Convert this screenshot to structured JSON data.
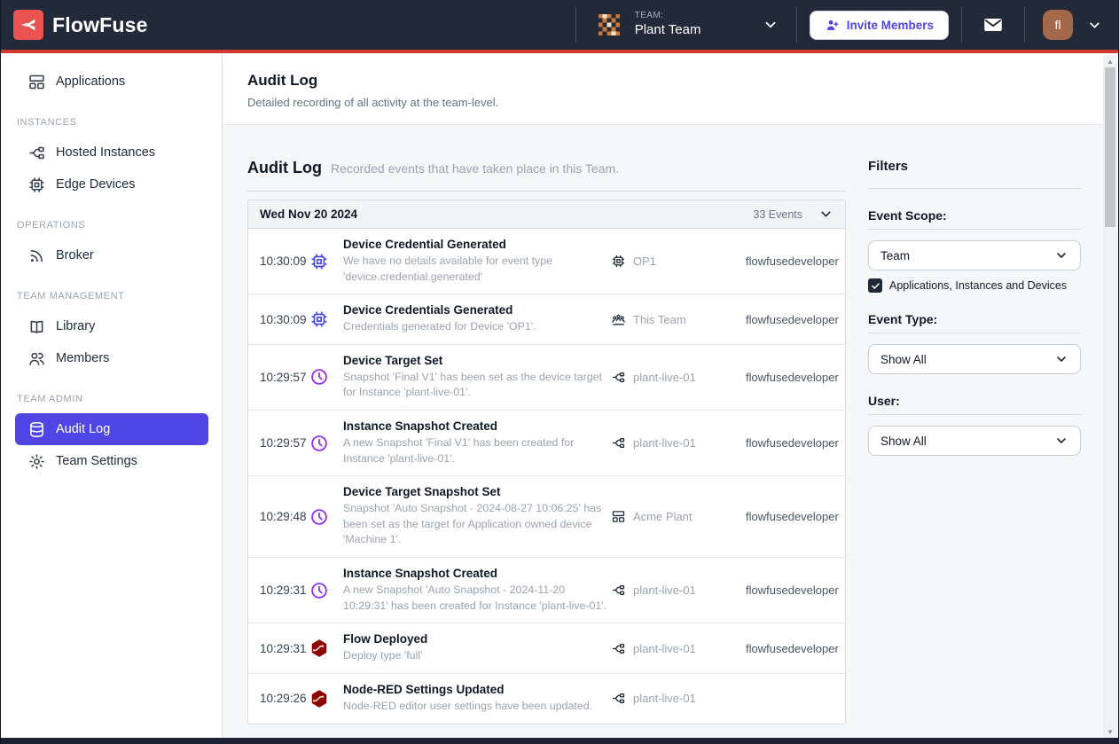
{
  "navbar": {
    "brand": "FlowFuse",
    "team_label": "TEAM:",
    "team_name": "Plant Team",
    "invite_button": "Invite Members",
    "user_initials": "fl"
  },
  "sidebar": {
    "sections": [
      {
        "label": "",
        "items": [
          {
            "icon": "applications",
            "label": "Applications",
            "active": false
          }
        ]
      },
      {
        "label": "INSTANCES",
        "items": [
          {
            "icon": "instances",
            "label": "Hosted Instances",
            "active": false
          },
          {
            "icon": "chip",
            "label": "Edge Devices",
            "active": false
          }
        ]
      },
      {
        "label": "OPERATIONS",
        "items": [
          {
            "icon": "broker",
            "label": "Broker",
            "active": false
          }
        ]
      },
      {
        "label": "TEAM MANAGEMENT",
        "items": [
          {
            "icon": "library",
            "label": "Library",
            "active": false
          },
          {
            "icon": "members",
            "label": "Members",
            "active": false
          }
        ]
      },
      {
        "label": "TEAM ADMIN",
        "items": [
          {
            "icon": "audit",
            "label": "Audit Log",
            "active": true
          },
          {
            "icon": "settings",
            "label": "Team Settings",
            "active": false
          }
        ]
      }
    ]
  },
  "page": {
    "title": "Audit Log",
    "subtitle": "Detailed recording of all activity at the team-level."
  },
  "section": {
    "title": "Audit Log",
    "subtitle": "Recorded events that have taken place in this Team."
  },
  "group": {
    "date": "Wed Nov 20 2024",
    "count": "33 Events"
  },
  "events": [
    {
      "time": "10:30:09",
      "icon": "chip",
      "icon_color": "device",
      "title": "Device Credential Generated",
      "description": "We have no details available for event type 'device.credential.generated'",
      "scope_icon": "chip",
      "scope": "OP1",
      "user": "flowfusedeveloper"
    },
    {
      "time": "10:30:09",
      "icon": "chip",
      "icon_color": "device",
      "title": "Device Credentials Generated",
      "description": "Credentials generated for Device 'OP1'.",
      "scope_icon": "team",
      "scope": "This Team",
      "user": "flowfusedeveloper"
    },
    {
      "time": "10:29:57",
      "icon": "clock",
      "icon_color": "clock",
      "title": "Device Target Set",
      "description": "Snapshot 'Final V1' has been set as the device target for Instance 'plant-live-01'.",
      "scope_icon": "instances",
      "scope": "plant-live-01",
      "user": "flowfusedeveloper"
    },
    {
      "time": "10:29:57",
      "icon": "clock",
      "icon_color": "clock",
      "title": "Instance Snapshot Created",
      "description": "A new Snapshot 'Final V1' has been created for Instance 'plant-live-01'.",
      "scope_icon": "instances",
      "scope": "plant-live-01",
      "user": "flowfusedeveloper"
    },
    {
      "time": "10:29:48",
      "icon": "clock",
      "icon_color": "clock",
      "title": "Device Target Snapshot Set",
      "description": "Snapshot 'Auto Snapshot - 2024-08-27 10:06:25' has been set as the target for Application owned device 'Machine 1'.",
      "scope_icon": "applications",
      "scope": "Acme Plant",
      "user": "flowfusedeveloper"
    },
    {
      "time": "10:29:31",
      "icon": "clock",
      "icon_color": "clock",
      "title": "Instance Snapshot Created",
      "description": "A new Snapshot 'Auto Snapshot - 2024-11-20 10:29:31' has been created for Instance 'plant-live-01'.",
      "scope_icon": "instances",
      "scope": "plant-live-01",
      "user": "flowfusedeveloper"
    },
    {
      "time": "10:29:31",
      "icon": "nodered",
      "icon_color": "nodered",
      "title": "Flow Deployed",
      "description": "Deploy type 'full'",
      "scope_icon": "instances",
      "scope": "plant-live-01",
      "user": "flowfusedeveloper"
    },
    {
      "time": "10:29:26",
      "icon": "nodered",
      "icon_color": "nodered",
      "title": "Node-RED Settings Updated",
      "description": "Node-RED editor user settings have been updated.",
      "scope_icon": "instances",
      "scope": "plant-live-01",
      "user": ""
    }
  ],
  "filters": {
    "heading": "Filters",
    "event_scope_label": "Event Scope:",
    "event_scope_value": "Team",
    "scope_checkbox_label": "Applications, Instances and Devices",
    "scope_checkbox_checked": true,
    "event_type_label": "Event Type:",
    "event_type_value": "Show All",
    "user_label": "User:",
    "user_value": "Show All"
  },
  "colors": {
    "navbar_bg": "#222938",
    "accent_red": "#d03a31",
    "brand_red": "#ea5350",
    "active_indigo": "#4f46e5",
    "device_icon_blue": "#4549de",
    "clock_icon_purple": "#9333ea",
    "nodered_red": "#8f0000",
    "avatar_brown": "#a4684a"
  }
}
